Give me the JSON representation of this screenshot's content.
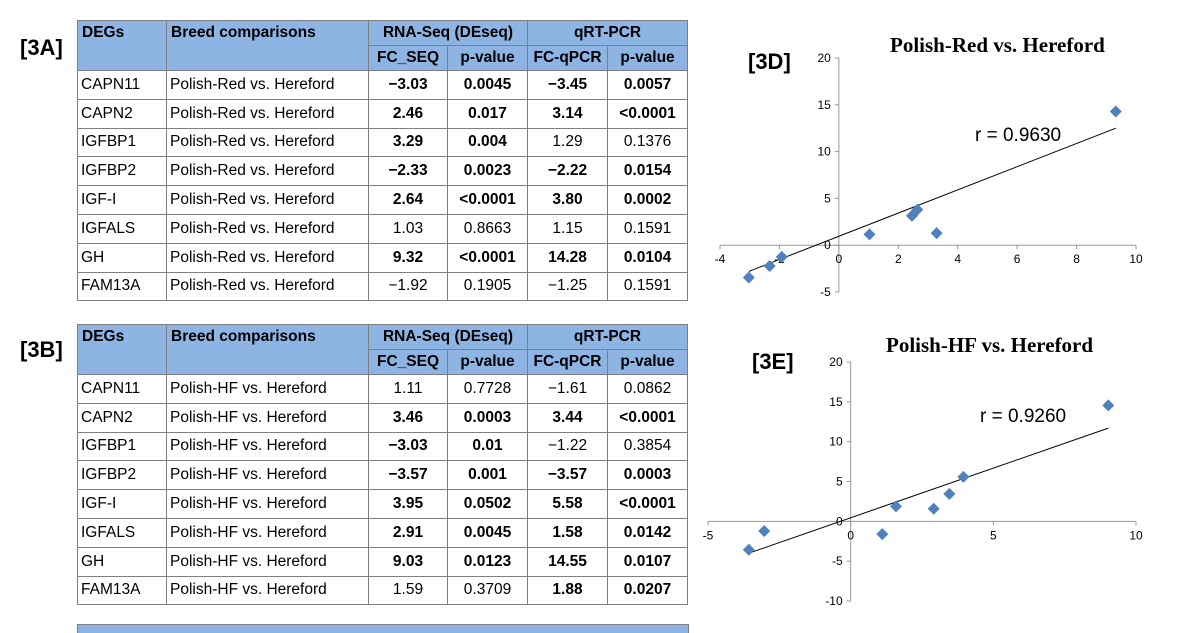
{
  "table_a": {
    "label": "[3A]",
    "headers": {
      "degs": "DEGs",
      "comparisons": "Breed comparisons",
      "rnaseq": "RNA-Seq (DEseq)",
      "qrtpcr": "qRT-PCR",
      "fc_seq": "FC_SEQ",
      "pvalue_seq": "p-value",
      "fc_qpcr": "FC-qPCR",
      "pvalue_qpcr": "p-value"
    },
    "rows": [
      {
        "gene": "CAPN11",
        "comparison": "Polish-Red vs. Hereford",
        "fc_seq": "−3.03",
        "p_seq": "0.0045",
        "fc_qpcr": "−3.45",
        "p_qpcr": "0.0057",
        "bold": [
          true,
          true,
          true,
          true
        ]
      },
      {
        "gene": "CAPN2",
        "comparison": "Polish-Red vs. Hereford",
        "fc_seq": "2.46",
        "p_seq": "0.017",
        "fc_qpcr": "3.14",
        "p_qpcr": "<0.0001",
        "bold": [
          true,
          true,
          true,
          true
        ]
      },
      {
        "gene": "IGFBP1",
        "comparison": "Polish-Red vs. Hereford",
        "fc_seq": "3.29",
        "p_seq": "0.004",
        "fc_qpcr": "1.29",
        "p_qpcr": "0.1376",
        "bold": [
          true,
          true,
          false,
          false
        ]
      },
      {
        "gene": "IGFBP2",
        "comparison": "Polish-Red vs. Hereford",
        "fc_seq": "−2.33",
        "p_seq": "0.0023",
        "fc_qpcr": "−2.22",
        "p_qpcr": "0.0154",
        "bold": [
          true,
          true,
          true,
          true
        ]
      },
      {
        "gene": "IGF-I",
        "comparison": "Polish-Red vs. Hereford",
        "fc_seq": "2.64",
        "p_seq": "<0.0001",
        "fc_qpcr": "3.80",
        "p_qpcr": "0.0002",
        "bold": [
          true,
          true,
          true,
          true
        ]
      },
      {
        "gene": "IGFALS",
        "comparison": "Polish-Red vs. Hereford",
        "fc_seq": "1.03",
        "p_seq": "0.8663",
        "fc_qpcr": "1.15",
        "p_qpcr": "0.1591",
        "bold": [
          false,
          false,
          false,
          false
        ]
      },
      {
        "gene": "GH",
        "comparison": "Polish-Red vs. Hereford",
        "fc_seq": "9.32",
        "p_seq": "<0.0001",
        "fc_qpcr": "14.28",
        "p_qpcr": "0.0104",
        "bold": [
          true,
          true,
          true,
          true
        ]
      },
      {
        "gene": "FAM13A",
        "comparison": "Polish-Red vs. Hereford",
        "fc_seq": "−1.92",
        "p_seq": "0.1905",
        "fc_qpcr": "−1.25",
        "p_qpcr": "0.1591",
        "bold": [
          false,
          false,
          false,
          false
        ]
      }
    ]
  },
  "table_b": {
    "label": "[3B]",
    "headers": {
      "degs": "DEGs",
      "comparisons": "Breed comparisons",
      "rnaseq": "RNA-Seq (DEseq)",
      "qrtpcr": "qRT-PCR",
      "fc_seq": "FC_SEQ",
      "pvalue_seq": "p-value",
      "fc_qpcr": "FC-qPCR",
      "pvalue_qpcr": "p-value"
    },
    "rows": [
      {
        "gene": "CAPN11",
        "comparison": "Polish-HF vs. Hereford",
        "fc_seq": "1.11",
        "p_seq": "0.7728",
        "fc_qpcr": "−1.61",
        "p_qpcr": "0.0862",
        "bold": [
          false,
          false,
          false,
          false
        ]
      },
      {
        "gene": "CAPN2",
        "comparison": "Polish-HF vs. Hereford",
        "fc_seq": "3.46",
        "p_seq": "0.0003",
        "fc_qpcr": "3.44",
        "p_qpcr": "<0.0001",
        "bold": [
          true,
          true,
          true,
          true
        ]
      },
      {
        "gene": "IGFBP1",
        "comparison": "Polish-HF vs. Hereford",
        "fc_seq": "−3.03",
        "p_seq": "0.01",
        "fc_qpcr": "−1.22",
        "p_qpcr": "0.3854",
        "bold": [
          true,
          true,
          false,
          false
        ]
      },
      {
        "gene": "IGFBP2",
        "comparison": "Polish-HF vs. Hereford",
        "fc_seq": "−3.57",
        "p_seq": "0.001",
        "fc_qpcr": "−3.57",
        "p_qpcr": "0.0003",
        "bold": [
          true,
          true,
          true,
          true
        ]
      },
      {
        "gene": "IGF-I",
        "comparison": "Polish-HF vs. Hereford",
        "fc_seq": "3.95",
        "p_seq": "0.0502",
        "fc_qpcr": "5.58",
        "p_qpcr": "<0.0001",
        "bold": [
          true,
          true,
          true,
          true
        ]
      },
      {
        "gene": "IGFALS",
        "comparison": "Polish-HF vs. Hereford",
        "fc_seq": "2.91",
        "p_seq": "0.0045",
        "fc_qpcr": "1.58",
        "p_qpcr": "0.0142",
        "bold": [
          true,
          true,
          true,
          true
        ]
      },
      {
        "gene": "GH",
        "comparison": "Polish-HF vs. Hereford",
        "fc_seq": "9.03",
        "p_seq": "0.0123",
        "fc_qpcr": "14.55",
        "p_qpcr": "0.0107",
        "bold": [
          true,
          true,
          true,
          true
        ]
      },
      {
        "gene": "FAM13A",
        "comparison": "Polish-HF vs. Hereford",
        "fc_seq": "1.59",
        "p_seq": "0.3709",
        "fc_qpcr": "1.88",
        "p_qpcr": "0.0207",
        "bold": [
          false,
          false,
          true,
          true
        ]
      }
    ]
  },
  "colors": {
    "header_fill": "#8eb4e3",
    "marker": "#4f81bd",
    "trendline": "#000000"
  },
  "chart_data": [
    {
      "panel": "[3D]",
      "type": "scatter",
      "title": "Polish-Red  vs. Hereford",
      "annotation": "r = 0.9630",
      "xlim": [
        -4,
        10
      ],
      "ylim": [
        -5,
        20
      ],
      "xticks": [
        -4,
        -2,
        0,
        2,
        4,
        6,
        8,
        10
      ],
      "yticks": [
        -5,
        0,
        5,
        10,
        15,
        20
      ],
      "marker": "diamond",
      "grid": false,
      "legend": "none",
      "points": [
        {
          "x": -3.03,
          "y": -3.45
        },
        {
          "x": 2.46,
          "y": 3.14
        },
        {
          "x": 3.29,
          "y": 1.29
        },
        {
          "x": -2.33,
          "y": -2.22
        },
        {
          "x": 2.64,
          "y": 3.8
        },
        {
          "x": 1.03,
          "y": 1.15
        },
        {
          "x": 9.32,
          "y": 14.28
        },
        {
          "x": -1.92,
          "y": -1.25
        }
      ],
      "trendline": {
        "from": [
          -3.03,
          -2.8
        ],
        "to": [
          9.32,
          12.5
        ]
      }
    },
    {
      "panel": "[3E]",
      "type": "scatter",
      "title": "Polish-HF vs. Hereford",
      "annotation": "r = 0.9260",
      "xlim": [
        -5,
        10
      ],
      "ylim": [
        -10,
        20
      ],
      "xticks": [
        -5,
        0,
        5,
        10
      ],
      "yticks": [
        -10,
        -5,
        0,
        5,
        10,
        15,
        20
      ],
      "marker": "diamond",
      "grid": false,
      "legend": "none",
      "points": [
        {
          "x": 1.11,
          "y": -1.61
        },
        {
          "x": 3.46,
          "y": 3.44
        },
        {
          "x": -3.03,
          "y": -1.22
        },
        {
          "x": -3.57,
          "y": -3.57
        },
        {
          "x": 3.95,
          "y": 5.58
        },
        {
          "x": 2.91,
          "y": 1.58
        },
        {
          "x": 9.03,
          "y": 14.55
        },
        {
          "x": 1.59,
          "y": 1.88
        }
      ],
      "trendline": {
        "from": [
          -3.57,
          -4.0
        ],
        "to": [
          9.03,
          11.7
        ]
      }
    }
  ]
}
